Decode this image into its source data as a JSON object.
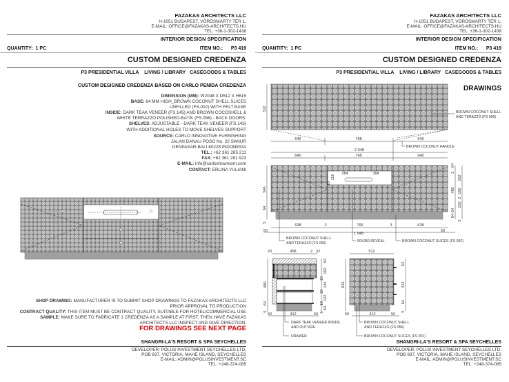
{
  "header": {
    "company": "FAZAKAS ARCHITECTS LLC",
    "address": "H-1051 BUDAPEST, VÖRÖSMARTY TÉR 1.",
    "email": "E-MAIL: OFFICE@FAZAKAS-ARCHITECTS.HU",
    "tel": "TEL: +36-1-302-1438",
    "doc_type": "INTERIOR DESIGN SPECIFICATION",
    "quantity_label": "QUANTITY:",
    "quantity_value": "1 PC",
    "item_no_label": "ITEM NO.:",
    "item_no_value": "P3 419",
    "title": "CUSTOM DESIGNED CREDENZA",
    "location": "P3 PRESIDENTIAL VILLA",
    "room": "LIVING / LIBRARY",
    "category": "CASEGOODS & TABLES"
  },
  "spec": {
    "subtitle": "CUSTOM DESIGNED CREDENZA BASED ON CARLO PENIDA CREDENZA",
    "lines": [
      {
        "label": "DIMENSION (MM):",
        "text": " W2048 X D512 X H615"
      },
      {
        "label": "BASE:",
        "text": " 64 MM HIGH_BROWN COCONUT SHELL SLICES"
      },
      {
        "label": "",
        "text": "UNFILLED (FS.002) WITH FELT BASE"
      },
      {
        "label": "INSIDE:",
        "text": " DARK TEAK VENEER (FS.145) AND BROWN COCOSHELL &"
      },
      {
        "label": "",
        "text": "WHITE TERRAZZO POLISHED-BATIK (FS.056) - BACK DOORS."
      },
      {
        "label": "SHELVES:",
        "text": " ADJUSTABLE - DARK TEAK VENEER (FS.145)"
      },
      {
        "label": "",
        "text": "WITH ADDITIONAL HOLES TO MOVE SHELVES SUPPORT"
      }
    ],
    "source": [
      {
        "label": "SOURCE:",
        "text": " CARLO INNOVATIVE FURNISHING"
      },
      {
        "label": "",
        "text": "JALAN DANAU POSO No. 22 SANUR"
      },
      {
        "label": "",
        "text": "DENPASAR-BALI 80228 INDONESIA"
      },
      {
        "label": "TEL.:",
        "text": " +62 361 285 211"
      },
      {
        "label": "FAX:",
        "text": " +62 361 281 923"
      },
      {
        "label": "E-MAIL:",
        "text": " info@carloshowroom.com"
      },
      {
        "label": "CONTACT:",
        "text": " ERLINA YULIANI"
      }
    ],
    "notes": [
      {
        "label": "SHOP DRAWING:",
        "text": " MANUFACTURER IS TO SUBMIT SHOP DRAWINGS TO FAZAKAS ARCHITECTS LLC"
      },
      {
        "label": "",
        "text": "PRIOR APPROVAL TO PRODUCTION"
      },
      {
        "label": "CONTRACT QUALITY:",
        "text": " THIS ITEM MUST BE CONTRACT QUALITY, SUITABLE FOR HOTEL/COMMERCIAL USE"
      },
      {
        "label": "SAMPLE:",
        "text": " MAKE SURE TO FABRICATE 1 CREDENZA AS A SAMPLE AT FIRST, THEN HAVE FAZAKAS"
      },
      {
        "label": "",
        "text": "ARCHITECTS LLC INSPECT AND GIVE DIRECTION."
      }
    ],
    "see_next": "FOR DRAWINGS SEE NEXT PAGE"
  },
  "footer": {
    "project": "SHANGRI-LA'S RESORT & SPA SEYCHELLES",
    "developer": "DEVELOPER: POLUS INVESTMENT SEYCHELLES LTD.",
    "address": "POB 837, VICTORIA, MAHE ISLAND, SEYCHELLES",
    "email": "E-MAIL: ADMIN@POLUSINVESTMENT.SC",
    "tel": "TEL: +248-374-085"
  },
  "drawings": {
    "heading": "DRAWINGS",
    "top": {
      "depth": "512",
      "d1": "640",
      "d2": "768",
      "d3": "640",
      "total": "2 048",
      "e1": "640",
      "e2": "768",
      "e3": "640",
      "callout_shell_1": "BROWN COCONUT SHELL",
      "callout_shell_2": "AND TERAZZO (FS 056)",
      "callout_handle": "BROWN COCONUT HANDLE"
    },
    "front": {
      "height": "546",
      "base_h": "64",
      "w1": "384",
      "w2": "384",
      "h116": "116",
      "h16": "16",
      "b1": "638",
      "g1": "3",
      "b2": "766",
      "g2": "3",
      "b3": "638",
      "inner": "1 948",
      "o1": "50",
      "o2": "50",
      "f5": "5",
      "rv": [
        "64",
        "2",
        "162",
        "480",
        "150",
        "2",
        "150",
        "64",
        "5",
        "64"
      ],
      "callout_shell_1": "BROWN COCONUT SHELL",
      "callout_shell_2": "AND TERAZZO (FS 056)",
      "callout_reveal": "50X350 REVEAL",
      "callout_slices": "BROWN COCONUT SLICES (FS 002)"
    },
    "section": {
      "t1": "20",
      "t2": "458",
      "t3": "2",
      "t4": "32",
      "h": "480",
      "base": "64",
      "f5": "5",
      "rv": [
        "64",
        "162",
        "18",
        "144",
        "18",
        "122",
        "18",
        "64",
        "5"
      ],
      "w": "412",
      "o1": "50",
      "o2": "50",
      "callout_teak_1": "DARK TEAK VENEER INSIDE",
      "callout_teak_2": "AND OUTSIDE",
      "callout_drawer": "DRAWER"
    },
    "side": {
      "w": "512",
      "h": "615",
      "b": "412",
      "o1": "50",
      "o2": "50",
      "r1": "64",
      "r2": "412",
      "r3": "64",
      "f5": "5",
      "callout_shell_1": "BROWN COCONUT SHELL",
      "callout_shell_2": "AND TERAZZO (FS 056)",
      "callout_slices": "BROWN COCONUT SLICES (FS 002)"
    }
  },
  "colors": {
    "accent_red": "#e00000",
    "pattern_base": "#8e8e8e",
    "base_gray": "#a0a0a0"
  }
}
